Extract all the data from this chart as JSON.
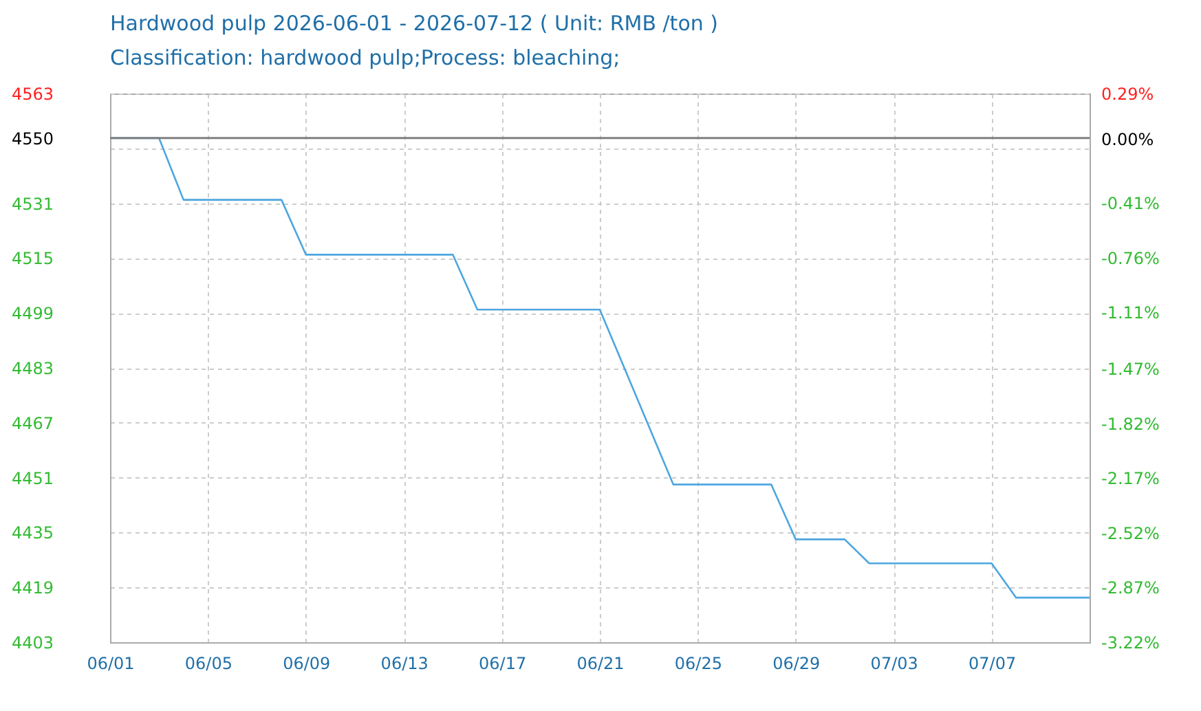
{
  "chart_data": {
    "type": "line",
    "title": "Hardwood pulp 2026-06-01 - 2026-07-12    ( Unit: RMB /ton )",
    "subtitle": "Classification: hardwood pulp;Process: bleaching;",
    "x": [
      "2026-06-01",
      "2026-06-03",
      "2026-06-04",
      "2026-06-08",
      "2026-06-09",
      "2026-06-15",
      "2026-06-16",
      "2026-06-21",
      "2026-06-24",
      "2026-06-28",
      "2026-06-29",
      "2026-07-01",
      "2026-07-02",
      "2026-07-07",
      "2026-07-08",
      "2026-07-11"
    ],
    "series": [
      {
        "color": "#4da6e0",
        "values": [
          4550,
          4550,
          4532,
          4532,
          4516,
          4516,
          4500,
          4500,
          4449,
          4449,
          4433,
          4433,
          4426,
          4426,
          4416,
          4416
        ]
      }
    ],
    "xlim": [
      "2026-06-01",
      "2026-07-11"
    ],
    "xticks": [
      {
        "value": "2026-06-01",
        "label": "06/01"
      },
      {
        "value": "2026-06-05",
        "label": "06/05"
      },
      {
        "value": "2026-06-09",
        "label": "06/09"
      },
      {
        "value": "2026-06-13",
        "label": "06/13"
      },
      {
        "value": "2026-06-17",
        "label": "06/17"
      },
      {
        "value": "2026-06-21",
        "label": "06/21"
      },
      {
        "value": "2026-06-25",
        "label": "06/25"
      },
      {
        "value": "2026-06-29",
        "label": "06/29"
      },
      {
        "value": "2026-07-03",
        "label": "07/03"
      },
      {
        "value": "2026-07-07",
        "label": "07/07"
      }
    ],
    "ylim": [
      4403,
      4563
    ],
    "yticks": [
      4563,
      {
        "value": 4547,
        "label": null
      },
      4550,
      4531,
      4515,
      4499,
      4483,
      4467,
      4451,
      4435,
      4419,
      4403
    ],
    "y2lim": [
      -3.22,
      0.29
    ],
    "y2ticks": [
      {
        "value": 0.29,
        "label": "0.29%"
      },
      {
        "value": 0,
        "label": "0.00%"
      },
      {
        "value": -0.41,
        "label": "-0.41%"
      },
      {
        "value": -0.76,
        "label": "-0.76%"
      },
      {
        "value": -1.11,
        "label": "-1.11%"
      },
      {
        "value": -1.47,
        "label": "-1.47%"
      },
      {
        "value": -1.82,
        "label": "-1.82%"
      },
      {
        "value": -2.17,
        "label": "-2.17%"
      },
      {
        "value": -2.52,
        "label": "-2.52%"
      },
      {
        "value": -2.87,
        "label": "-2.87%"
      },
      {
        "value": -3.22,
        "label": "-3.22%"
      }
    ],
    "ref_lines": [
      {
        "axis": "y",
        "value": 4550,
        "color": "#808080"
      }
    ],
    "grid": true,
    "line_style": "solid",
    "marker": "none"
  }
}
